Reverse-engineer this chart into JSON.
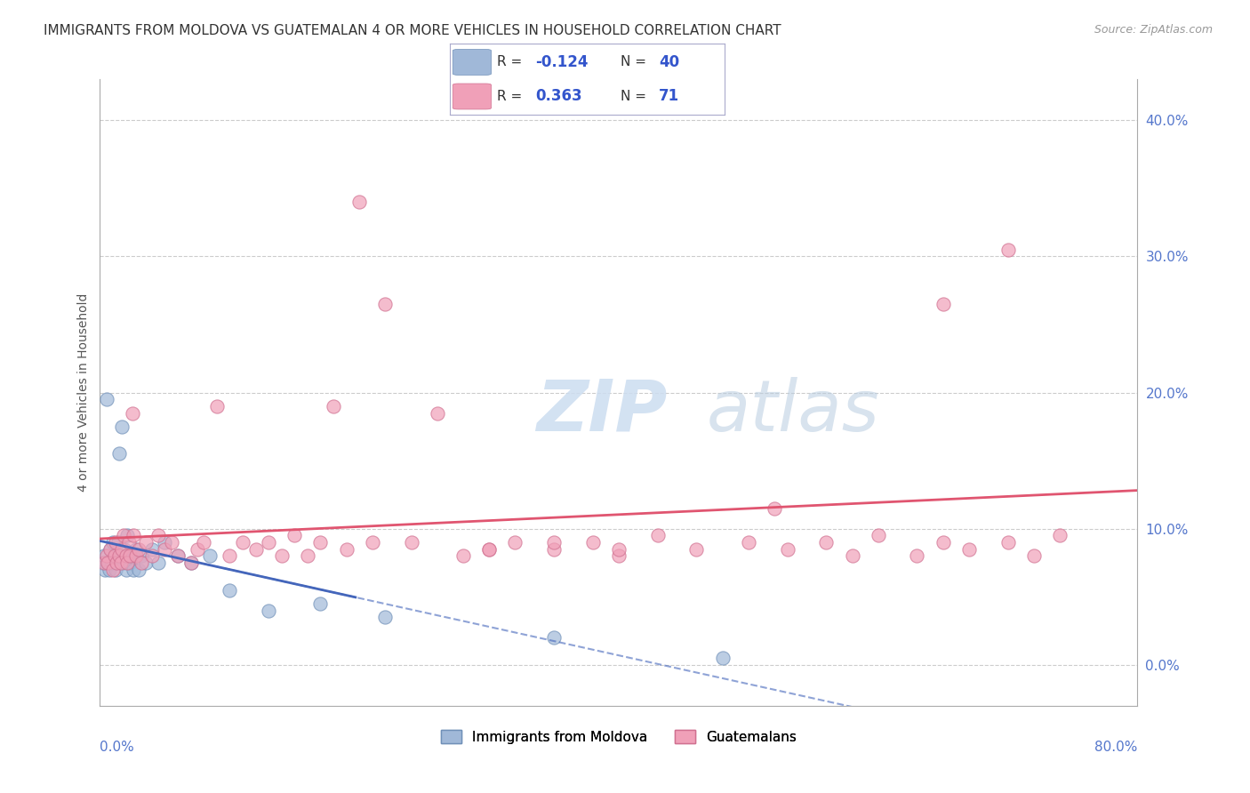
{
  "title": "IMMIGRANTS FROM MOLDOVA VS GUATEMALAN 4 OR MORE VEHICLES IN HOUSEHOLD CORRELATION CHART",
  "source": "Source: ZipAtlas.com",
  "ylabel": "4 or more Vehicles in Household",
  "ytick_vals": [
    0.0,
    10.0,
    20.0,
    30.0,
    40.0
  ],
  "xlim": [
    0.0,
    80.0
  ],
  "ylim": [
    -3.0,
    43.0
  ],
  "blue_color": "#a0b8d8",
  "blue_edge": "#7090b8",
  "pink_color": "#f0a0b8",
  "pink_edge": "#d07090",
  "blue_line_color": "#4466bb",
  "pink_line_color": "#e05570",
  "blue_scatter_x": [
    0.2,
    0.3,
    0.4,
    0.5,
    0.6,
    0.7,
    0.8,
    0.9,
    1.0,
    1.1,
    1.2,
    1.3,
    1.4,
    1.5,
    1.6,
    1.7,
    1.8,
    1.9,
    2.0,
    2.1,
    2.2,
    2.3,
    2.5,
    2.6,
    2.8,
    3.0,
    3.2,
    3.5,
    4.0,
    4.5,
    5.0,
    6.0,
    7.0,
    8.5,
    10.0,
    13.0,
    17.0,
    22.0,
    35.0,
    48.0
  ],
  "blue_scatter_y": [
    7.5,
    8.0,
    7.0,
    19.5,
    7.5,
    7.0,
    8.5,
    7.5,
    9.0,
    8.0,
    7.0,
    8.0,
    9.0,
    15.5,
    8.0,
    17.5,
    7.5,
    8.5,
    7.0,
    9.5,
    8.0,
    7.5,
    8.0,
    7.0,
    8.5,
    7.0,
    8.0,
    7.5,
    8.5,
    7.5,
    9.0,
    8.0,
    7.5,
    8.0,
    5.5,
    4.0,
    4.5,
    3.5,
    2.0,
    0.5
  ],
  "pink_scatter_x": [
    0.3,
    0.5,
    0.6,
    0.8,
    1.0,
    1.1,
    1.2,
    1.3,
    1.5,
    1.6,
    1.7,
    1.8,
    2.0,
    2.1,
    2.2,
    2.3,
    2.5,
    2.6,
    2.8,
    3.0,
    3.2,
    3.5,
    4.0,
    4.5,
    5.0,
    5.5,
    6.0,
    7.0,
    7.5,
    8.0,
    9.0,
    10.0,
    11.0,
    12.0,
    13.0,
    14.0,
    15.0,
    16.0,
    17.0,
    18.0,
    19.0,
    20.0,
    21.0,
    22.0,
    24.0,
    26.0,
    28.0,
    30.0,
    32.0,
    35.0,
    38.0,
    40.0,
    43.0,
    46.0,
    50.0,
    53.0,
    56.0,
    58.0,
    60.0,
    63.0,
    65.0,
    67.0,
    70.0,
    72.0,
    74.0,
    30.0,
    35.0,
    40.0,
    52.0,
    65.0,
    70.0
  ],
  "pink_scatter_y": [
    7.5,
    8.0,
    7.5,
    8.5,
    7.0,
    8.0,
    9.0,
    7.5,
    8.0,
    7.5,
    8.5,
    9.5,
    8.0,
    7.5,
    9.0,
    8.0,
    18.5,
    9.5,
    8.0,
    8.5,
    7.5,
    9.0,
    8.0,
    9.5,
    8.5,
    9.0,
    8.0,
    7.5,
    8.5,
    9.0,
    19.0,
    8.0,
    9.0,
    8.5,
    9.0,
    8.0,
    9.5,
    8.0,
    9.0,
    19.0,
    8.5,
    34.0,
    9.0,
    26.5,
    9.0,
    18.5,
    8.0,
    8.5,
    9.0,
    8.5,
    9.0,
    8.0,
    9.5,
    8.5,
    9.0,
    8.5,
    9.0,
    8.0,
    9.5,
    8.0,
    9.0,
    8.5,
    9.0,
    8.0,
    9.5,
    8.5,
    9.0,
    8.5,
    11.5,
    26.5,
    30.5
  ],
  "background_color": "#ffffff",
  "grid_color": "#cccccc"
}
